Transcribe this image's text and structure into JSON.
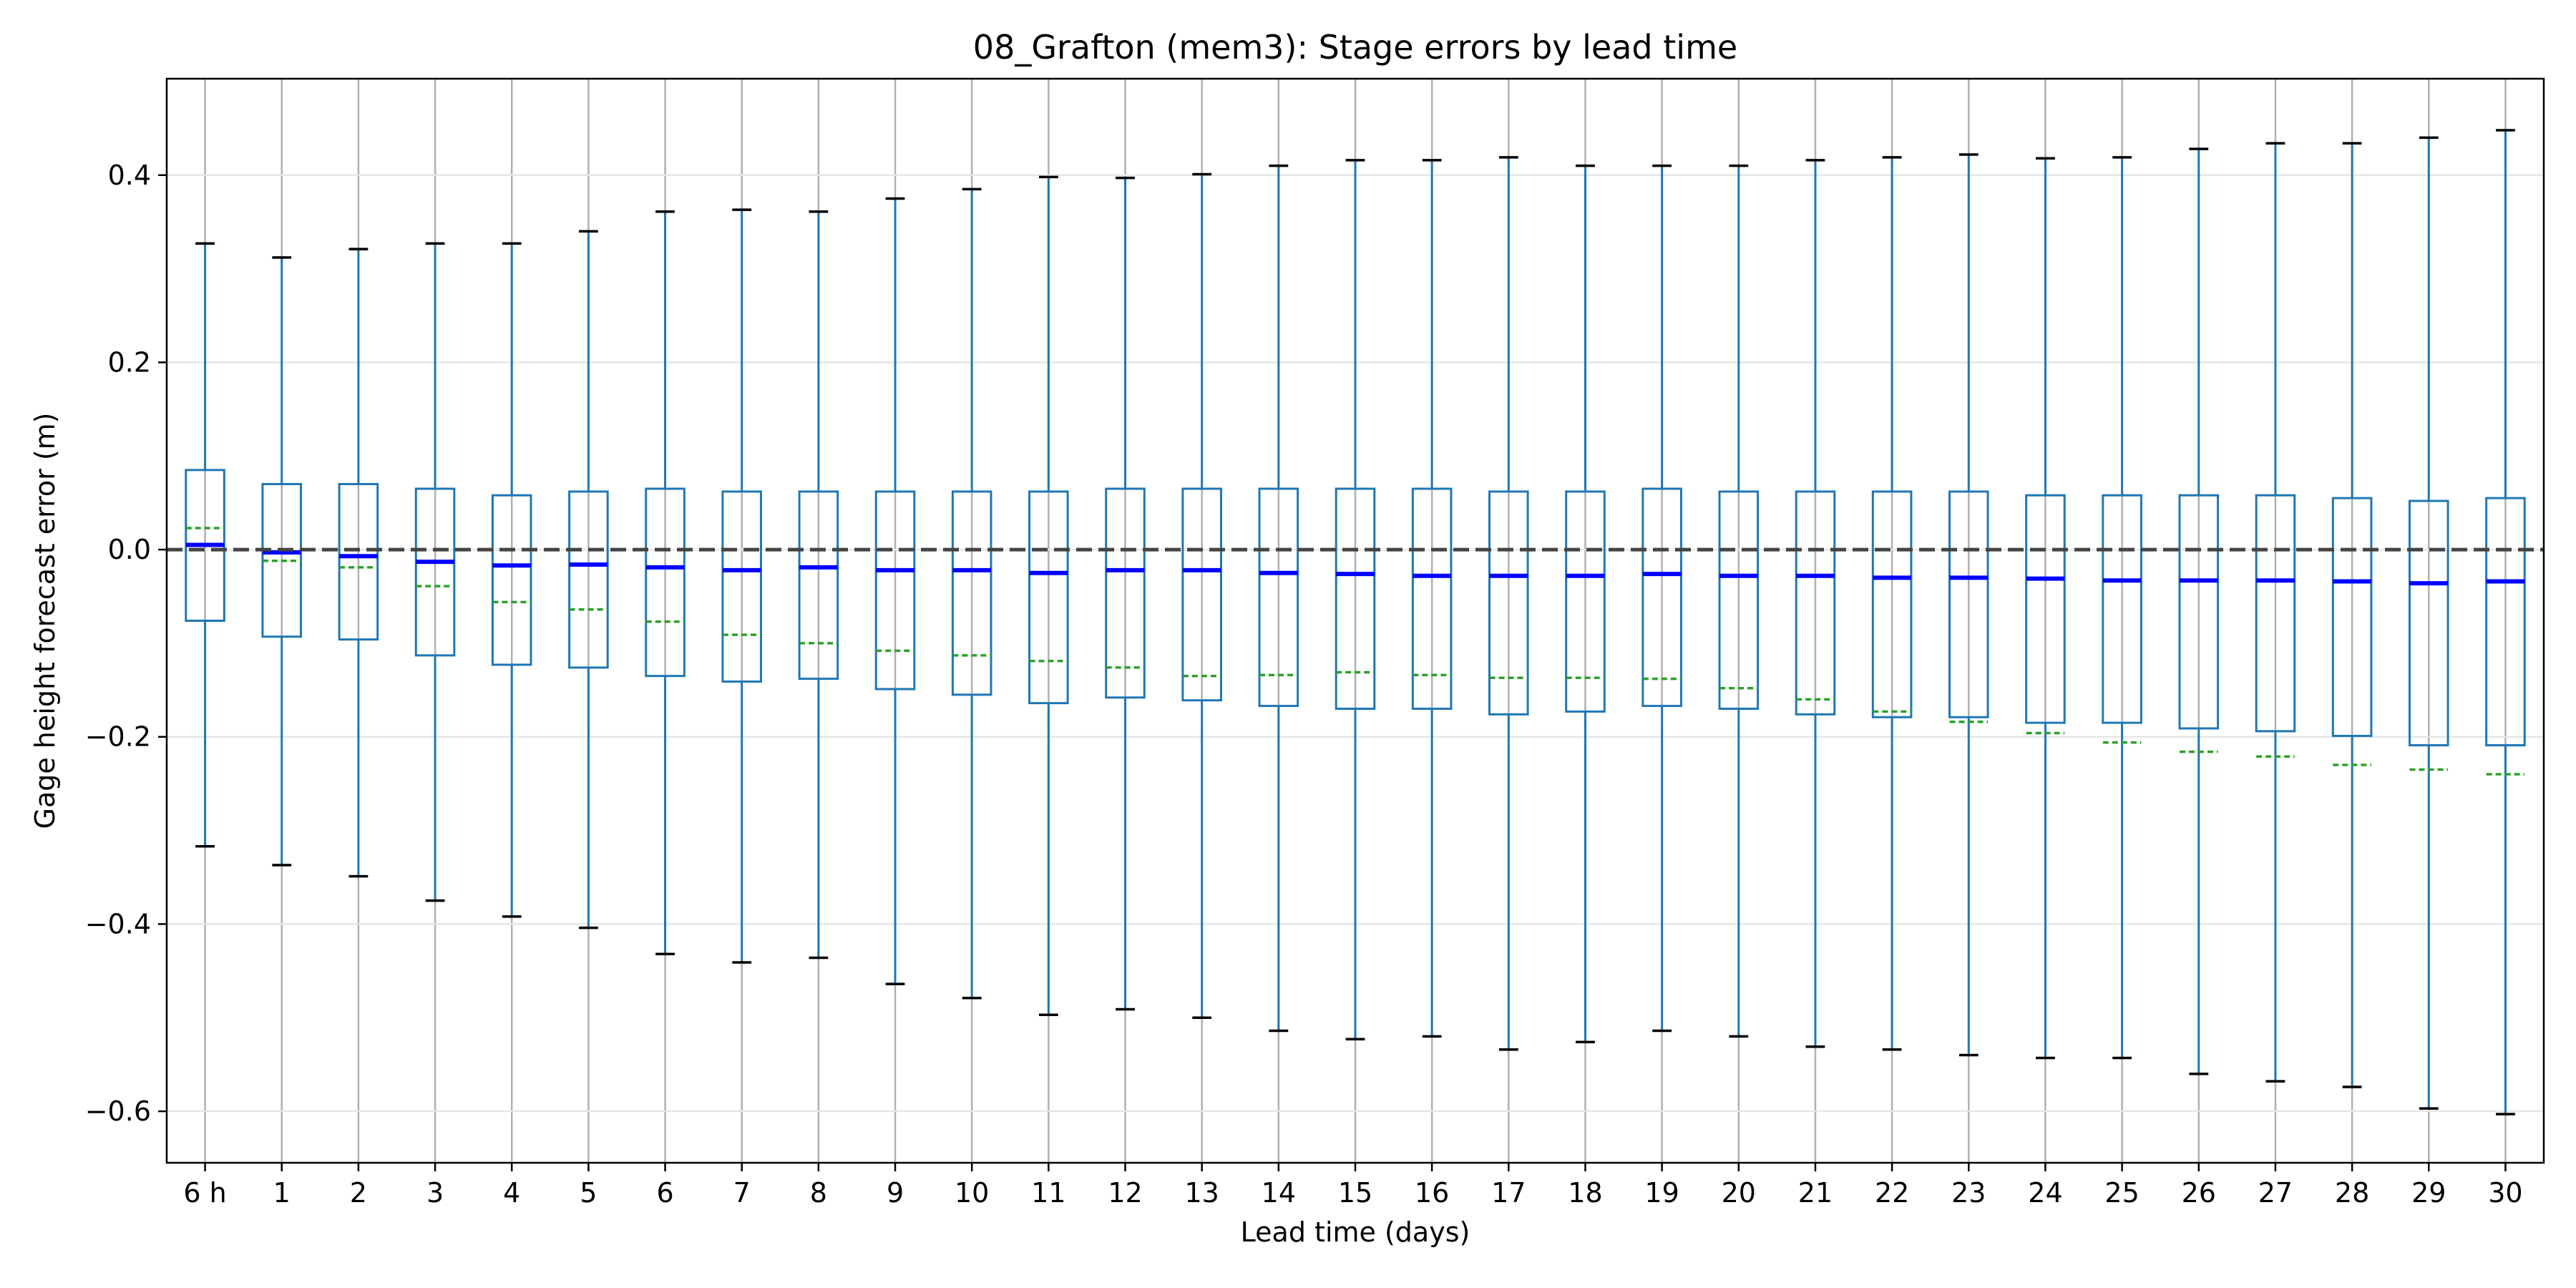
{
  "chart_data": {
    "type": "box",
    "title": "08_Grafton (mem3): Stage errors by lead time",
    "xlabel": "Lead time (days)",
    "ylabel": "Gage height forecast error (m)",
    "ylim": [
      -0.655,
      0.503
    ],
    "yticks": [
      -0.6,
      -0.4,
      -0.2,
      0.0,
      0.2,
      0.4
    ],
    "ytick_labels": [
      "−0.6",
      "−0.4",
      "−0.2",
      "0.0",
      "0.2",
      "0.4"
    ],
    "reference_line": {
      "y": 0.0,
      "style": "dashed",
      "color": "#444444"
    },
    "grid": true,
    "colors": {
      "box": "#1f77b4",
      "median": "#0000ff",
      "mean": "#2ca02c",
      "cap": "#000000",
      "grid": "#b0b0b0"
    },
    "categories": [
      "6 h",
      "1",
      "2",
      "3",
      "4",
      "5",
      "6",
      "7",
      "8",
      "9",
      "10",
      "11",
      "12",
      "13",
      "14",
      "15",
      "16",
      "17",
      "18",
      "19",
      "20",
      "21",
      "22",
      "23",
      "24",
      "25",
      "26",
      "27",
      "28",
      "29",
      "30"
    ],
    "whisker_high": [
      0.327,
      0.312,
      0.321,
      0.327,
      0.327,
      0.34,
      0.361,
      0.363,
      0.361,
      0.375,
      0.385,
      0.398,
      0.397,
      0.401,
      0.41,
      0.416,
      0.416,
      0.419,
      0.41,
      0.41,
      0.41,
      0.416,
      0.419,
      0.422,
      0.418,
      0.419,
      0.428,
      0.434,
      0.434,
      0.44,
      0.448
    ],
    "q3": [
      0.085,
      0.07,
      0.07,
      0.065,
      0.058,
      0.062,
      0.065,
      0.062,
      0.062,
      0.062,
      0.062,
      0.062,
      0.065,
      0.065,
      0.065,
      0.065,
      0.065,
      0.062,
      0.062,
      0.065,
      0.062,
      0.062,
      0.062,
      0.062,
      0.058,
      0.058,
      0.058,
      0.058,
      0.055,
      0.052,
      0.055
    ],
    "median": [
      0.005,
      -0.003,
      -0.007,
      -0.013,
      -0.017,
      -0.016,
      -0.019,
      -0.022,
      -0.019,
      -0.022,
      -0.022,
      -0.025,
      -0.022,
      -0.022,
      -0.025,
      -0.026,
      -0.028,
      -0.028,
      -0.028,
      -0.026,
      -0.028,
      -0.028,
      -0.03,
      -0.03,
      -0.031,
      -0.033,
      -0.033,
      -0.033,
      -0.034,
      -0.036,
      -0.034
    ],
    "mean": [
      0.023,
      -0.012,
      -0.019,
      -0.039,
      -0.056,
      -0.064,
      -0.077,
      -0.091,
      -0.1,
      -0.108,
      -0.113,
      -0.119,
      -0.126,
      -0.135,
      -0.134,
      -0.131,
      -0.134,
      -0.137,
      -0.137,
      -0.138,
      -0.148,
      -0.16,
      -0.173,
      -0.184,
      -0.196,
      -0.206,
      -0.216,
      -0.221,
      -0.23,
      -0.235,
      -0.24
    ],
    "q1": [
      -0.076,
      -0.093,
      -0.096,
      -0.113,
      -0.123,
      -0.126,
      -0.135,
      -0.141,
      -0.138,
      -0.149,
      -0.155,
      -0.164,
      -0.158,
      -0.161,
      -0.167,
      -0.17,
      -0.17,
      -0.176,
      -0.173,
      -0.167,
      -0.17,
      -0.176,
      -0.179,
      -0.179,
      -0.185,
      -0.185,
      -0.191,
      -0.194,
      -0.199,
      -0.209,
      -0.209
    ],
    "whisker_low": [
      -0.317,
      -0.337,
      -0.349,
      -0.375,
      -0.392,
      -0.404,
      -0.432,
      -0.441,
      -0.436,
      -0.464,
      -0.479,
      -0.497,
      -0.491,
      -0.5,
      -0.514,
      -0.523,
      -0.52,
      -0.534,
      -0.526,
      -0.514,
      -0.52,
      -0.531,
      -0.534,
      -0.54,
      -0.543,
      -0.543,
      -0.56,
      -0.568,
      -0.574,
      -0.597,
      -0.603
    ]
  }
}
